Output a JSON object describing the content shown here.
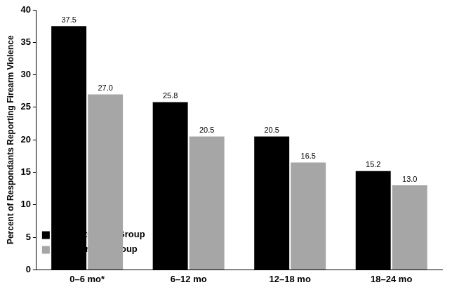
{
  "chart_data": {
    "type": "bar",
    "y_label": "Percent of Respondants Reporting Firearm Violence",
    "categories": [
      "0–6 mo*",
      "6–12 mo",
      "12–18 mo",
      "18–24 mo"
    ],
    "series": [
      {
        "name": "Assault-Injury Group",
        "color": "#000000",
        "values": [
          37.5,
          25.8,
          20.5,
          15.2
        ],
        "value_labels": [
          "37.5",
          "25.8",
          "20.5",
          "15.2"
        ]
      },
      {
        "name": "Comparison Group",
        "color": "#a6a6a6",
        "values": [
          27.0,
          20.5,
          16.5,
          13.0
        ],
        "value_labels": [
          "27.0",
          "20.5",
          "16.5",
          "13.0"
        ]
      }
    ],
    "ylim": [
      0,
      40
    ],
    "yticks": [
      0,
      5,
      10,
      15,
      20,
      25,
      30,
      35,
      40
    ],
    "grid": false,
    "legend": "upper right",
    "data_labels": true
  }
}
